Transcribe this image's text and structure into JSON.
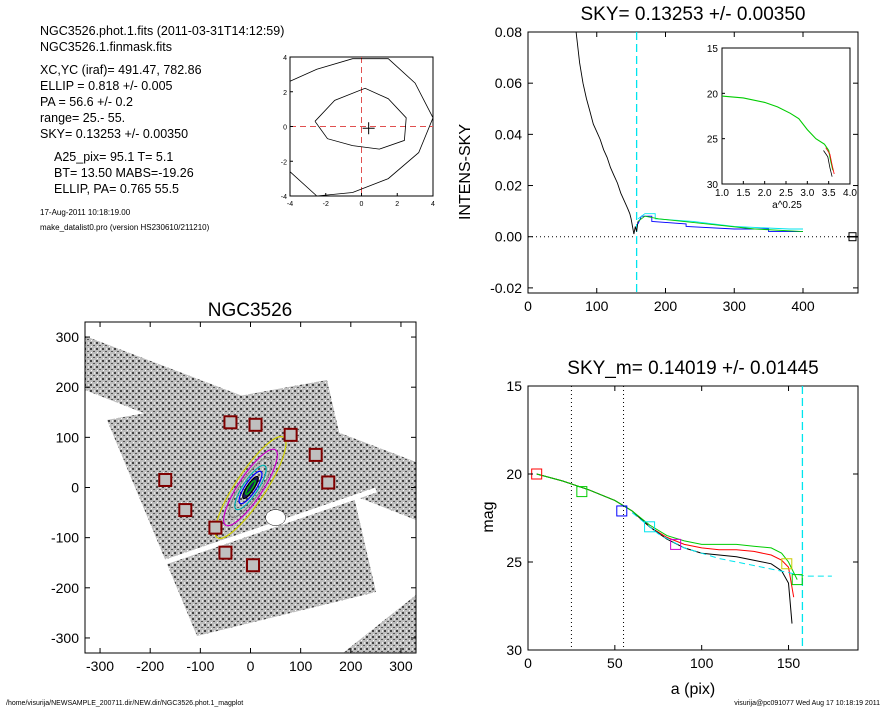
{
  "header": {
    "file_line": "NGC3526.phot.1.fits  (2011-03-31T14:12:59)",
    "mask_line": "NGC3526.1.finmask.fits",
    "params": [
      "XC,YC (iraf)=   491.47, 782.86",
      "ELLIP = 0.818 +/- 0.005",
      "PA    = 56.6 +/-   0.2",
      "range=   25.-   55.",
      "SKY= 0.13253 +/- 0.00350"
    ],
    "derived": [
      "A25_pix= 95.1   T= 5.1",
      "BT=  13.50   MABS=-19.26",
      "ELLIP, PA= 0.765    55.5"
    ],
    "date": "17-Aug-2011 10:18:19.00",
    "program": "make_datalist0.pro (version HS230610/211210)"
  },
  "footer": {
    "path": "/home/visurija/NEWSAMPLE_200711.dir/NEW.dir/NGC3526.phot.1_magplot",
    "user": "visurija@pc091077  Wed Aug 17 10:18:19 2011"
  },
  "colors": {
    "black": "#000000",
    "red": "#ff0000",
    "green": "#00cc00",
    "blue": "#0000ff",
    "cyan": "#00e5ee",
    "magenta": "#cc00cc",
    "yellow": "#cccc00",
    "darkred": "#800000"
  },
  "chart_data": [
    {
      "id": "contour",
      "type": "line",
      "xlim": [
        -4,
        4
      ],
      "ylim": [
        -4,
        4
      ],
      "xticks": [
        "-4",
        "-2",
        "0",
        "2",
        "4"
      ],
      "yticks": [
        "-4",
        "-2",
        "0",
        "2",
        "4"
      ],
      "contours": [
        [
          [
            -4,
            2.6
          ],
          [
            -2.5,
            3.3
          ],
          [
            -0.5,
            3.9
          ],
          [
            1.5,
            3.9
          ],
          [
            3,
            2.5
          ],
          [
            4,
            0.5
          ],
          [
            3.2,
            -1.5
          ],
          [
            1.5,
            -3
          ],
          [
            -0.5,
            -3.8
          ],
          [
            -2.5,
            -4
          ],
          [
            -4,
            -2.6
          ]
        ],
        [
          [
            -2.6,
            0.3
          ],
          [
            -1.5,
            1.5
          ],
          [
            0.2,
            2.2
          ],
          [
            1.5,
            1.6
          ],
          [
            2.5,
            0.5
          ],
          [
            2.4,
            -0.8
          ],
          [
            1,
            -1.3
          ],
          [
            -0.5,
            -1.1
          ],
          [
            -1.9,
            -0.7
          ],
          [
            -2.6,
            0.3
          ]
        ]
      ],
      "center": [
        0.4,
        -0.1
      ]
    },
    {
      "id": "sky",
      "type": "line",
      "title": "SKY= 0.13253 +/- 0.00350",
      "ylabel": "INTENS-SKY",
      "xlim": [
        0,
        480
      ],
      "ylim": [
        -0.022,
        0.08
      ],
      "xticks": [
        "0",
        "100",
        "200",
        "300",
        "400"
      ],
      "yticks": [
        "-0.02",
        "0.00",
        "0.02",
        "0.04",
        "0.06",
        "0.08"
      ],
      "cyan_vline": 158,
      "series": [
        {
          "points": [
            [
              70,
              0.08
            ],
            [
              75,
              0.068
            ],
            [
              80,
              0.06
            ],
            [
              85,
              0.054
            ],
            [
              90,
              0.049
            ],
            [
              95,
              0.044
            ],
            [
              100,
              0.041
            ],
            [
              105,
              0.038
            ],
            [
              110,
              0.034
            ],
            [
              115,
              0.031
            ],
            [
              120,
              0.027
            ],
            [
              125,
              0.024
            ],
            [
              130,
              0.021
            ],
            [
              135,
              0.017
            ],
            [
              140,
              0.014
            ],
            [
              145,
              0.011
            ],
            [
              148,
              0.009
            ],
            [
              150,
              0.007
            ],
            [
              152,
              0.004
            ],
            [
              154,
              0.001
            ],
            [
              156,
              0.004
            ],
            [
              158,
              0.002
            ],
            [
              160,
              0.006
            ]
          ]
        },
        {
          "points": [
            [
              160,
              0.005
            ],
            [
              165,
              0.008
            ],
            [
              180,
              0.008
            ],
            [
              180,
              0.006
            ],
            [
              230,
              0.005
            ],
            [
              230,
              0.004
            ],
            [
              300,
              0.003
            ],
            [
              350,
              0.003
            ],
            [
              350,
              0.002
            ],
            [
              400,
              0.002
            ]
          ]
        },
        {
          "points": [
            [
              160,
              0.007
            ],
            [
              170,
              0.009
            ],
            [
              185,
              0.009
            ],
            [
              185,
              0.007
            ],
            [
              240,
              0.006
            ],
            [
              300,
              0.004
            ],
            [
              380,
              0.003
            ],
            [
              400,
              0.003
            ]
          ]
        },
        {
          "points": [
            [
              160,
              0.006
            ],
            [
              170,
              0.008
            ],
            [
              190,
              0.007
            ],
            [
              260,
              0.005
            ],
            [
              330,
              0.003
            ],
            [
              400,
              0.002
            ]
          ]
        }
      ],
      "inset": {
        "xlabel": "a^0.25",
        "xlim": [
          1.0,
          4.0
        ],
        "ylim": [
          15,
          30
        ],
        "xticks": [
          "1.0",
          "1.5",
          "2.0",
          "2.5",
          "3.0",
          "3.5",
          "4.0"
        ],
        "yticks": [
          "15",
          "20",
          "25",
          "30"
        ],
        "points": [
          [
            1.0,
            20.3
          ],
          [
            1.5,
            20.5
          ],
          [
            2.0,
            21.0
          ],
          [
            2.3,
            21.5
          ],
          [
            2.6,
            22.2
          ],
          [
            2.8,
            22.8
          ],
          [
            3.0,
            24.0
          ],
          [
            3.2,
            25.0
          ],
          [
            3.4,
            25.6
          ],
          [
            3.5,
            26.3
          ],
          [
            3.55,
            27.5
          ],
          [
            3.6,
            28.5
          ]
        ]
      }
    },
    {
      "id": "image",
      "type": "scatter",
      "title": "NGC3526",
      "xlim": [
        -330,
        330
      ],
      "ylim": [
        -330,
        330
      ],
      "xticks": [
        "-300",
        "-200",
        "-100",
        "0",
        "100",
        "200",
        "300"
      ],
      "yticks": [
        "-300",
        "-200",
        "-100",
        "0",
        "100",
        "200",
        "300"
      ],
      "pa_deg": 56.6,
      "ellip": 0.818,
      "boxes": [
        [
          -40,
          130
        ],
        [
          10,
          125
        ],
        [
          80,
          105
        ],
        [
          130,
          65
        ],
        [
          155,
          10
        ],
        [
          -170,
          15
        ],
        [
          -130,
          -45
        ],
        [
          -70,
          -80
        ],
        [
          -50,
          -130
        ],
        [
          5,
          -155
        ]
      ]
    },
    {
      "id": "magprof",
      "type": "line",
      "title": "SKY_m=  0.14019 +/- 0.01445",
      "ylabel": "mag",
      "xlabel": "a (pix)",
      "xlim": [
        0,
        190
      ],
      "ylim": [
        30,
        15
      ],
      "xticks": [
        "0",
        "50",
        "100",
        "150"
      ],
      "yticks": [
        "15",
        "20",
        "25",
        "30"
      ],
      "vlines_dotted": [
        25,
        55
      ],
      "cyan_vline": 158,
      "series": [
        {
          "name": "",
          "color": "red",
          "points": [
            [
              5,
              20
            ],
            [
              20,
              20.4
            ],
            [
              35,
              20.9
            ],
            [
              50,
              21.5
            ],
            [
              60,
              22.1
            ],
            [
              70,
              23
            ],
            [
              80,
              23.6
            ],
            [
              90,
              24
            ],
            [
              100,
              24.2
            ],
            [
              110,
              24.3
            ],
            [
              120,
              24.3
            ],
            [
              130,
              24.4
            ],
            [
              140,
              24.6
            ],
            [
              146,
              24.9
            ],
            [
              150,
              25.3
            ],
            [
              153,
              27
            ]
          ]
        },
        {
          "name": "",
          "color": "black",
          "points": [
            [
              5,
              20
            ],
            [
              20,
              20.4
            ],
            [
              35,
              20.9
            ],
            [
              50,
              21.5
            ],
            [
              60,
              22.1
            ],
            [
              70,
              23
            ],
            [
              80,
              23.7
            ],
            [
              90,
              24.2
            ],
            [
              100,
              24.5
            ],
            [
              110,
              24.6
            ],
            [
              120,
              24.7
            ],
            [
              130,
              24.9
            ],
            [
              140,
              25.1
            ],
            [
              146,
              25.5
            ],
            [
              150,
              26.2
            ],
            [
              152,
              28.5
            ]
          ]
        },
        {
          "name": "",
          "color": "green",
          "points": [
            [
              5,
              20
            ],
            [
              20,
              20.4
            ],
            [
              35,
              20.9
            ],
            [
              50,
              21.5
            ],
            [
              60,
              22.1
            ],
            [
              70,
              22.9
            ],
            [
              80,
              23.5
            ],
            [
              90,
              23.8
            ],
            [
              100,
              24
            ],
            [
              110,
              24
            ],
            [
              120,
              24
            ],
            [
              130,
              24.1
            ],
            [
              140,
              24.2
            ],
            [
              146,
              24.5
            ],
            [
              150,
              25
            ],
            [
              155,
              26
            ]
          ]
        },
        {
          "name": "",
          "color": "cyan",
          "dashed": true,
          "points": [
            [
              60,
              22.2
            ],
            [
              75,
              23.4
            ],
            [
              90,
              24.2
            ],
            [
              110,
              24.8
            ],
            [
              130,
              25.2
            ],
            [
              150,
              25.6
            ],
            [
              160,
              25.8
            ],
            [
              175,
              25.8
            ]
          ]
        }
      ],
      "markers": [
        {
          "x": 5,
          "y": 20,
          "color": "red"
        },
        {
          "x": 31,
          "y": 21,
          "color": "green"
        },
        {
          "x": 54,
          "y": 22.1,
          "color": "blue"
        },
        {
          "x": 70,
          "y": 23,
          "color": "cyan"
        },
        {
          "x": 85,
          "y": 24,
          "color": "magenta"
        },
        {
          "x": 149,
          "y": 25.1,
          "color": "yellow"
        },
        {
          "x": 155,
          "y": 26,
          "color": "green"
        }
      ]
    }
  ]
}
